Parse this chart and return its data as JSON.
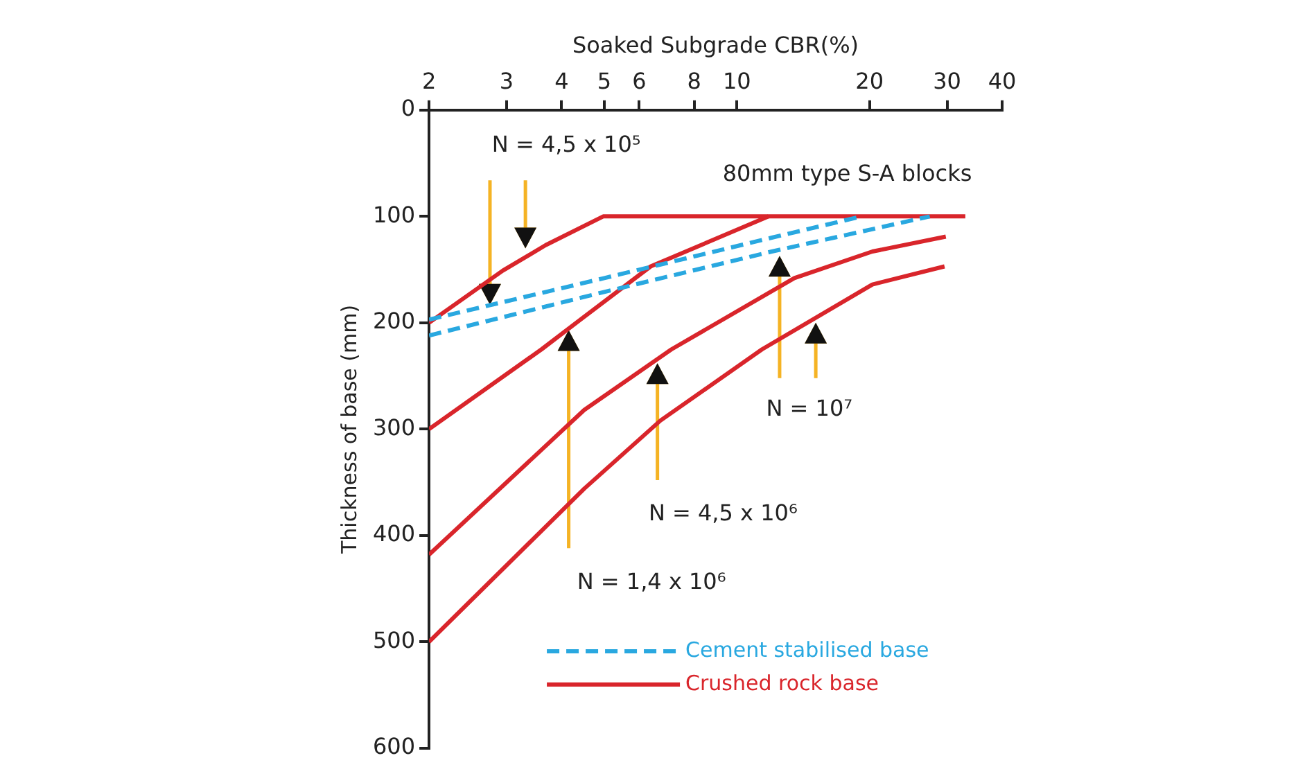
{
  "chart_data": {
    "type": "line",
    "xlabel": "Soaked Subgrade CBR(%)",
    "ylabel": "Thickness of base (mm)",
    "log": "x",
    "xlim": [
      2,
      40
    ],
    "xticks": [
      2,
      3,
      4,
      5,
      6,
      8,
      10,
      20,
      30,
      40
    ],
    "ylim": [
      600,
      0
    ],
    "yticks": [
      0,
      100,
      200,
      300,
      400,
      500,
      600
    ],
    "grid": false,
    "legend": "bottom right",
    "marker": "none",
    "series": [
      {
        "name": "Cement stabilised base",
        "color": "#29a8e0",
        "line_style": "dashed",
        "x": [
          2,
          5,
          12,
          19.2
        ],
        "values": [
          197,
          158,
          120,
          100
        ]
      },
      {
        "color": "#29a8e0",
        "line_style": "dashed",
        "x": [
          2,
          5,
          12,
          27.4
        ],
        "values": [
          212,
          171,
          133,
          100
        ]
      },
      {
        "name": "Crushed rock base",
        "color": "#d9252b",
        "line_style": "solid",
        "x": [
          2,
          2.94,
          3.68,
          4.97,
          33
        ],
        "values": [
          200,
          151,
          127,
          100,
          100
        ]
      },
      {
        "color": "#d9252b",
        "line_style": "solid",
        "x": [
          2,
          3.6,
          4.38,
          6.37,
          11.8
        ],
        "values": [
          300,
          225,
          198,
          147,
          100
        ]
      },
      {
        "color": "#d9252b",
        "line_style": "solid",
        "x": [
          2,
          4.5,
          7.1,
          13.5,
          20.3,
          29.8
        ],
        "values": [
          418,
          282,
          225,
          158,
          133,
          119
        ]
      },
      {
        "color": "#d9252b",
        "line_style": "solid",
        "x": [
          2,
          4.5,
          6.7,
          11.4,
          20.3,
          29.6
        ],
        "values": [
          500,
          356,
          292,
          225,
          164,
          147
        ]
      }
    ],
    "annotations": [
      "N = 4,5 x 10⁵",
      "80mm type S-A blocks",
      "N = 10⁷",
      "N = 4,5 x 10⁶",
      "N = 1,4 x 10⁶"
    ]
  }
}
